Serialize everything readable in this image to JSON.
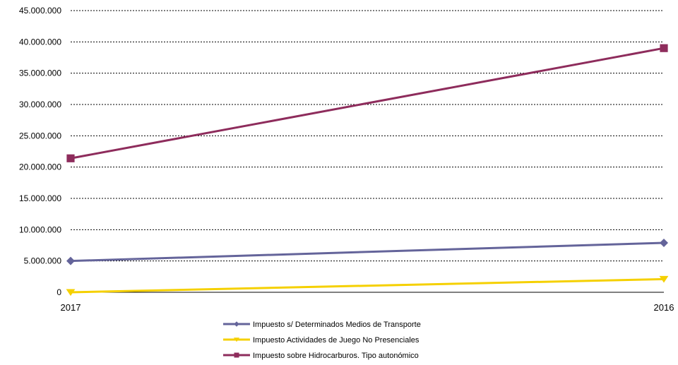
{
  "chart_data": {
    "type": "line",
    "x": [
      "2017",
      "2016"
    ],
    "ylim": [
      0,
      45000000
    ],
    "yticks": [
      0,
      5000000,
      10000000,
      15000000,
      20000000,
      25000000,
      30000000,
      35000000,
      40000000,
      45000000
    ],
    "ytick_labels": [
      "0",
      "5.000.000",
      "10.000.000",
      "15.000.000",
      "20.000.000",
      "25.000.000",
      "30.000.000",
      "35.000.000",
      "40.000.000",
      "45.000.000"
    ],
    "grid": true,
    "legend_position": "bottom",
    "series": [
      {
        "name": "Impuesto s/ Determinados Medios de Transporte",
        "values": [
          5000000,
          7900000
        ],
        "color": "#64649A",
        "marker": "diamond"
      },
      {
        "name": "Impuesto Actividades de Juego No Presenciales",
        "values": [
          0,
          2100000
        ],
        "color": "#F5D000",
        "marker": "triangle-down"
      },
      {
        "name": "Impuesto sobre Hidrocarburos. Tipo autonómico",
        "values": [
          21400000,
          39000000
        ],
        "color": "#8E2C5C",
        "marker": "square"
      }
    ]
  }
}
